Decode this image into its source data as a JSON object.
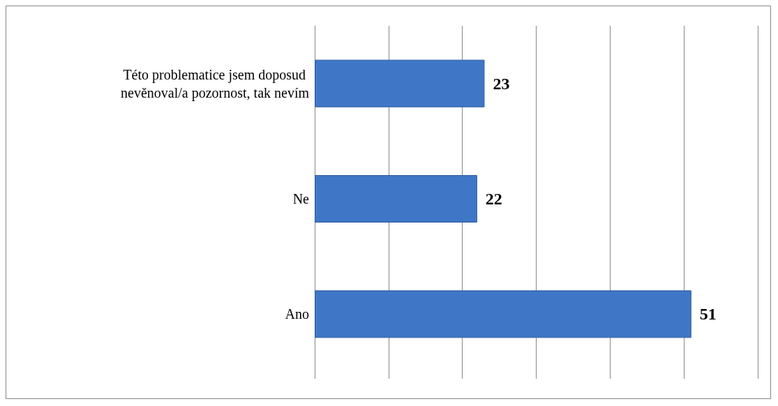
{
  "chart_data": {
    "type": "bar",
    "orientation": "horizontal",
    "categories": [
      "Této problematice jsem doposud nevěnoval/a pozornost, tak nevím",
      "Ne",
      "Ano"
    ],
    "values": [
      23,
      22,
      51
    ],
    "color": "#3f77c6",
    "grid": "x",
    "tick_labels": "y",
    "data_labels": true
  }
}
